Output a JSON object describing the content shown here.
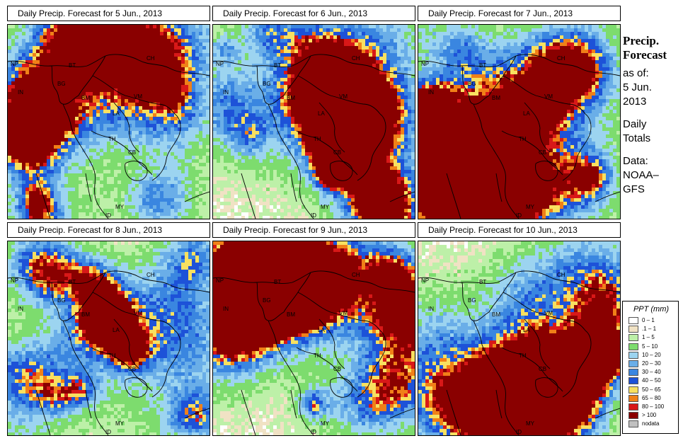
{
  "panels": [
    {
      "title": "Daily Precip. Forecast for  5 Jun., 2013"
    },
    {
      "title": "Daily Precip. Forecast for  6 Jun., 2013"
    },
    {
      "title": "Daily Precip. Forecast for  7 Jun., 2013"
    },
    {
      "title": "Daily Precip. Forecast for  8 Jun., 2013"
    },
    {
      "title": "Daily Precip. Forecast for  9 Jun., 2013"
    },
    {
      "title": "Daily Precip. Forecast for  10 Jun., 2013"
    }
  ],
  "country_labels": [
    "NP",
    "BT",
    "IN",
    "BG",
    "CH",
    "BM",
    "VM",
    "LA",
    "TH",
    "CB",
    "MY",
    "ID"
  ],
  "sidebar": {
    "title_line1": "Precip.",
    "title_line2": "Forecast",
    "asof_line1": "as of:",
    "asof_line2": "5 Jun.",
    "asof_line3": "2013",
    "totals_line1": "Daily",
    "totals_line2": "Totals",
    "data_line1": "Data:",
    "data_line2": "NOAA–",
    "data_line3": "GFS"
  },
  "legend": {
    "title": "PPT (mm)",
    "items": [
      {
        "label": "0 – 1",
        "color": "#ffffff"
      },
      {
        "label": ".1 – 1",
        "color": "#f0e2c4"
      },
      {
        "label": "1 – 5",
        "color": "#bdf0a8"
      },
      {
        "label": "5 – 10",
        "color": "#7ddc6e"
      },
      {
        "label": "10 – 20",
        "color": "#9cd4f0"
      },
      {
        "label": "20 – 30",
        "color": "#6aaee8"
      },
      {
        "label": "30 – 40",
        "color": "#3a86e0"
      },
      {
        "label": "40 – 50",
        "color": "#1d52d8"
      },
      {
        "label": "50 – 65",
        "color": "#f8e060"
      },
      {
        "label": "65 – 80",
        "color": "#f08018"
      },
      {
        "label": "80 – 100",
        "color": "#d81818"
      },
      {
        "label": "> 100",
        "color": "#8a0000"
      },
      {
        "label": "nodata",
        "color": "#c0c0c0"
      }
    ]
  }
}
